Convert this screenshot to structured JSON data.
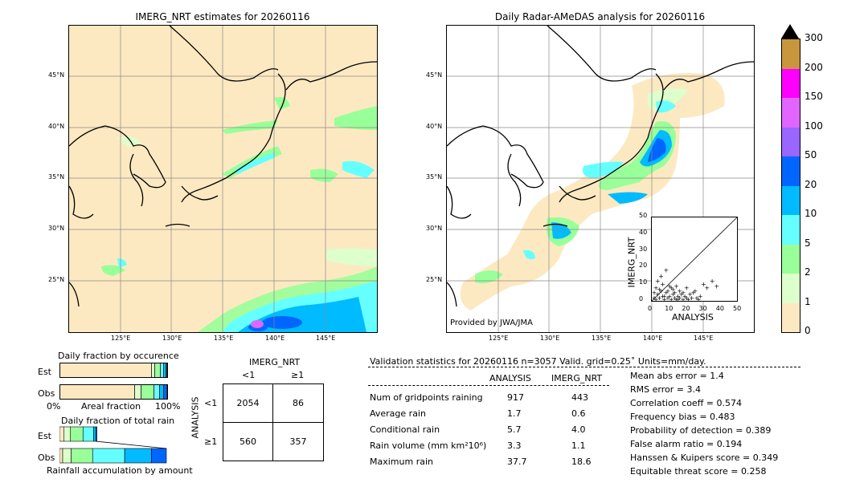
{
  "left_map": {
    "title": "IMERG_NRT estimates for 20260116",
    "lat_labels": [
      "45°N",
      "40°N",
      "35°N",
      "30°N",
      "25°N"
    ],
    "lon_labels": [
      "125°E",
      "130°E",
      "135°E",
      "140°E",
      "145°E"
    ]
  },
  "right_map": {
    "title": "Daily Radar-AMeDAS analysis for 20260116",
    "lat_labels": [
      "45°N",
      "40°N",
      "35°N",
      "30°N",
      "25°N"
    ],
    "lon_labels": [
      "125°E",
      "130°E",
      "135°E",
      "140°E",
      "145°E"
    ],
    "credit": "Provided by JWA/JMA"
  },
  "colorbar": {
    "ticks": [
      "300",
      "200",
      "150",
      "100",
      "50",
      "20",
      "10",
      "5",
      "2",
      "1",
      "0"
    ],
    "colors": [
      "#c8963c",
      "#ff00ff",
      "#e066ff",
      "#9966ff",
      "#0066ff",
      "#00bbff",
      "#66ffff",
      "#99ff99",
      "#ddffcc",
      "#fde9c1"
    ]
  },
  "chart_data": [
    {
      "type": "scatter",
      "title": "",
      "xlabel": "ANALYSIS",
      "ylabel": "IMERG_NRT",
      "xlim": [
        0,
        50
      ],
      "ylim": [
        0,
        50
      ],
      "x_ticks": [
        "0",
        "10",
        "20",
        "30",
        "40",
        "50"
      ],
      "y_ticks": [
        "0",
        "10",
        "20",
        "30",
        "40",
        "50"
      ],
      "points": [
        [
          1,
          2
        ],
        [
          2,
          1
        ],
        [
          3,
          4
        ],
        [
          4,
          2
        ],
        [
          5,
          6
        ],
        [
          6,
          3
        ],
        [
          7,
          1
        ],
        [
          8,
          5
        ],
        [
          9,
          2
        ],
        [
          10,
          3
        ],
        [
          11,
          1
        ],
        [
          12,
          4
        ],
        [
          13,
          2
        ],
        [
          14,
          1
        ],
        [
          15,
          3
        ],
        [
          16,
          2
        ],
        [
          18,
          1
        ],
        [
          20,
          2
        ],
        [
          22,
          4
        ],
        [
          25,
          6
        ],
        [
          28,
          3
        ],
        [
          30,
          10
        ],
        [
          32,
          8
        ],
        [
          35,
          12
        ],
        [
          37.7,
          9
        ],
        [
          3,
          12
        ],
        [
          5,
          15
        ],
        [
          8,
          18.6
        ],
        [
          10,
          9
        ],
        [
          2,
          8
        ],
        [
          6,
          10
        ],
        [
          12,
          7
        ],
        [
          14,
          9
        ],
        [
          16,
          6
        ],
        [
          18,
          5
        ],
        [
          20,
          8
        ],
        [
          24,
          5
        ],
        [
          26,
          2
        ],
        [
          1,
          5
        ],
        [
          4,
          7
        ],
        [
          7,
          3
        ],
        [
          9,
          6
        ],
        [
          11,
          8
        ],
        [
          13,
          5
        ],
        [
          15,
          1
        ],
        [
          17,
          4
        ],
        [
          19,
          3
        ],
        [
          21,
          1
        ],
        [
          23,
          2
        ],
        [
          27,
          1
        ]
      ]
    },
    {
      "type": "bar",
      "title": "Daily fraction by occurence",
      "categories": [
        "Est",
        "Obs"
      ],
      "xlabel": "Areal fraction",
      "x_ticks": [
        "0%",
        "100%"
      ],
      "series_colors": [
        "#fde9c1",
        "#ddffcc",
        "#99ff99",
        "#66ffff",
        "#00bbff",
        "#0066ff"
      ],
      "values": {
        "Est": [
          0.86,
          0.03,
          0.05,
          0.03,
          0.02,
          0.01
        ],
        "Obs": [
          0.7,
          0.06,
          0.12,
          0.05,
          0.04,
          0.03
        ]
      }
    },
    {
      "type": "bar",
      "title": "Daily fraction of total rain",
      "categories": [
        "Est",
        "Obs"
      ],
      "xlabel": "Rainfall accumulation by amount",
      "series_colors": [
        "#fde9c1",
        "#ddffcc",
        "#99ff99",
        "#66ffff",
        "#00bbff",
        "#0066ff"
      ],
      "values": {
        "Est": [
          0.04,
          0.06,
          0.12,
          0.1,
          0.02,
          0.01
        ],
        "Obs": [
          0.03,
          0.08,
          0.2,
          0.3,
          0.25,
          0.14
        ]
      }
    }
  ],
  "contingency": {
    "title": "IMERG_NRT",
    "col_labels": [
      "<1",
      "≥1"
    ],
    "row_title": "ANALYSIS",
    "row_labels": [
      "<1",
      "≥1"
    ],
    "cells": [
      [
        "2054",
        "86"
      ],
      [
        "560",
        "357"
      ]
    ]
  },
  "validation": {
    "header": "Validation statistics for 20260116  n=3057 Valid. grid=0.25˚ Units=mm/day.",
    "col_analysis": "ANALYSIS",
    "col_imerg": "IMERG_NRT",
    "rows": [
      {
        "label": "Num of gridpoints raining",
        "a": "917",
        "b": "443"
      },
      {
        "label": "Average rain",
        "a": "1.7",
        "b": "0.6"
      },
      {
        "label": "Conditional rain",
        "a": "5.7",
        "b": "4.0"
      },
      {
        "label": "Rain volume (mm km²10⁶)",
        "a": "3.3",
        "b": "1.1"
      },
      {
        "label": "Maximum rain",
        "a": "37.7",
        "b": "18.6"
      }
    ],
    "scores": [
      "Mean abs error =    1.4",
      "RMS error =    3.4",
      "Correlation coeff =  0.574",
      "Frequency bias =  0.483",
      "Probability of detection =  0.389",
      "False alarm ratio =  0.194",
      "Hanssen & Kuipers score =  0.349",
      "Equitable threat score =  0.258"
    ]
  }
}
